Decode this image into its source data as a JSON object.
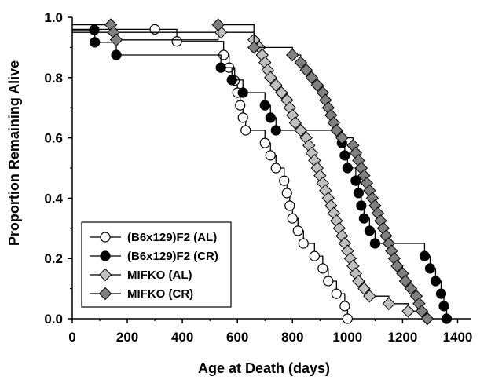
{
  "chart_data": {
    "type": "line",
    "subtype": "step-survival",
    "xlabel": "Age at Death (days)",
    "ylabel": "Proportion Remaining Alive",
    "xlim": [
      0,
      1450
    ],
    "ylim": [
      0,
      1.0
    ],
    "xticks": [
      "0",
      "200",
      "400",
      "600",
      "800",
      "1000",
      "1200",
      "1400"
    ],
    "yticks": [
      "0.0",
      "0.2",
      "0.4",
      "0.6",
      "0.8",
      "1.0"
    ],
    "grid": false,
    "legend_position": "bottom-left",
    "series": [
      {
        "name": "(B6x129)F2 (AL)",
        "marker": "circle-open",
        "color": "#000000",
        "fill": "#ffffff",
        "points": [
          [
            300,
            0.96
          ],
          [
            380,
            0.92
          ],
          [
            550,
            0.875
          ],
          [
            570,
            0.833
          ],
          [
            590,
            0.79
          ],
          [
            600,
            0.75
          ],
          [
            610,
            0.708
          ],
          [
            620,
            0.667
          ],
          [
            630,
            0.625
          ],
          [
            700,
            0.583
          ],
          [
            720,
            0.542
          ],
          [
            740,
            0.5
          ],
          [
            770,
            0.458
          ],
          [
            780,
            0.417
          ],
          [
            790,
            0.375
          ],
          [
            800,
            0.333
          ],
          [
            820,
            0.292
          ],
          [
            840,
            0.25
          ],
          [
            880,
            0.208
          ],
          [
            910,
            0.167
          ],
          [
            930,
            0.125
          ],
          [
            960,
            0.083
          ],
          [
            990,
            0.042
          ],
          [
            1000,
            0.0
          ]
        ]
      },
      {
        "name": "(B6x129)F2 (CR)",
        "marker": "circle-filled",
        "color": "#000000",
        "fill": "#000000",
        "points": [
          [
            80,
            0.958
          ],
          [
            82,
            0.917
          ],
          [
            160,
            0.875
          ],
          [
            540,
            0.833
          ],
          [
            580,
            0.792
          ],
          [
            620,
            0.75
          ],
          [
            700,
            0.708
          ],
          [
            720,
            0.667
          ],
          [
            740,
            0.625
          ],
          [
            980,
            0.583
          ],
          [
            990,
            0.542
          ],
          [
            1000,
            0.5
          ],
          [
            1030,
            0.458
          ],
          [
            1040,
            0.417
          ],
          [
            1050,
            0.375
          ],
          [
            1060,
            0.333
          ],
          [
            1080,
            0.292
          ],
          [
            1100,
            0.25
          ],
          [
            1280,
            0.208
          ],
          [
            1300,
            0.167
          ],
          [
            1320,
            0.125
          ],
          [
            1340,
            0.083
          ],
          [
            1350,
            0.042
          ],
          [
            1360,
            0.0
          ]
        ]
      },
      {
        "name": "MIFKO (AL)",
        "marker": "diamond",
        "color": "#000000",
        "fill": "#c0c0c0",
        "points": [
          [
            540,
            0.95
          ],
          [
            660,
            0.925
          ],
          [
            680,
            0.9
          ],
          [
            690,
            0.875
          ],
          [
            700,
            0.85
          ],
          [
            710,
            0.825
          ],
          [
            720,
            0.8
          ],
          [
            740,
            0.775
          ],
          [
            760,
            0.75
          ],
          [
            780,
            0.725
          ],
          [
            790,
            0.7
          ],
          [
            800,
            0.675
          ],
          [
            810,
            0.65
          ],
          [
            830,
            0.625
          ],
          [
            850,
            0.6
          ],
          [
            860,
            0.575
          ],
          [
            870,
            0.55
          ],
          [
            880,
            0.525
          ],
          [
            890,
            0.5
          ],
          [
            900,
            0.475
          ],
          [
            910,
            0.45
          ],
          [
            920,
            0.425
          ],
          [
            930,
            0.4
          ],
          [
            940,
            0.375
          ],
          [
            950,
            0.35
          ],
          [
            960,
            0.325
          ],
          [
            970,
            0.3
          ],
          [
            980,
            0.275
          ],
          [
            990,
            0.25
          ],
          [
            1000,
            0.225
          ],
          [
            1010,
            0.2
          ],
          [
            1020,
            0.175
          ],
          [
            1030,
            0.15
          ],
          [
            1040,
            0.125
          ],
          [
            1060,
            0.1
          ],
          [
            1080,
            0.075
          ],
          [
            1150,
            0.05
          ],
          [
            1220,
            0.025
          ],
          [
            1290,
            0.0
          ]
        ]
      },
      {
        "name": "MIFKO (CR)",
        "marker": "diamond",
        "color": "#000000",
        "fill": "#808080",
        "points": [
          [
            140,
            0.975
          ],
          [
            150,
            0.95
          ],
          [
            160,
            0.925
          ],
          [
            530,
            0.975
          ],
          [
            660,
            0.9
          ],
          [
            800,
            0.875
          ],
          [
            830,
            0.85
          ],
          [
            850,
            0.825
          ],
          [
            870,
            0.8
          ],
          [
            890,
            0.775
          ],
          [
            910,
            0.75
          ],
          [
            920,
            0.725
          ],
          [
            930,
            0.7
          ],
          [
            940,
            0.675
          ],
          [
            950,
            0.65
          ],
          [
            960,
            0.625
          ],
          [
            980,
            0.6
          ],
          [
            1020,
            0.575
          ],
          [
            1030,
            0.55
          ],
          [
            1040,
            0.525
          ],
          [
            1050,
            0.5
          ],
          [
            1060,
            0.475
          ],
          [
            1070,
            0.45
          ],
          [
            1080,
            0.425
          ],
          [
            1090,
            0.4
          ],
          [
            1100,
            0.375
          ],
          [
            1110,
            0.35
          ],
          [
            1120,
            0.325
          ],
          [
            1130,
            0.3
          ],
          [
            1140,
            0.275
          ],
          [
            1150,
            0.25
          ],
          [
            1160,
            0.225
          ],
          [
            1170,
            0.2
          ],
          [
            1180,
            0.175
          ],
          [
            1200,
            0.15
          ],
          [
            1210,
            0.125
          ],
          [
            1230,
            0.1
          ],
          [
            1250,
            0.075
          ],
          [
            1260,
            0.05
          ],
          [
            1270,
            0.025
          ],
          [
            1290,
            0.0
          ]
        ]
      }
    ]
  }
}
